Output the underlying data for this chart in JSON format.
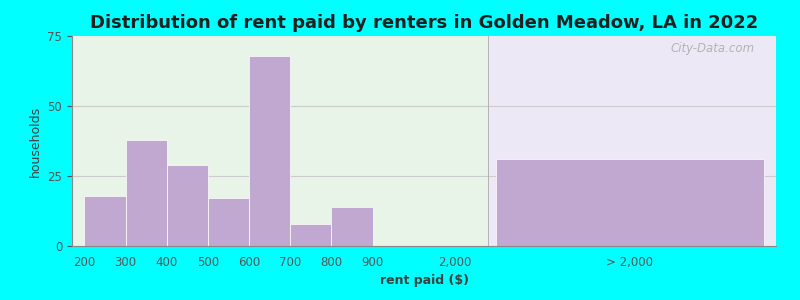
{
  "title": "Distribution of rent paid by renters in Golden Meadow, LA in 2022",
  "xlabel": "rent paid ($)",
  "ylabel": "households",
  "background_outer": "#00FFFF",
  "background_inner_left": "#dff0d8",
  "background_inner_right": "#f0ecf8",
  "bar_color": "#c0a8d0",
  "bar_edge_color": "#ffffff",
  "yticks": [
    0,
    25,
    50,
    75
  ],
  "ylim": [
    0,
    75
  ],
  "bins_left": [
    "200",
    "300",
    "400",
    "500",
    "600",
    "700",
    "800",
    "900"
  ],
  "values_left": [
    18,
    38,
    29,
    17,
    68,
    8,
    14,
    0
  ],
  "label_2000": "2,000",
  "label_gt2000": "> 2,000",
  "value_gt2000": 31,
  "watermark": "City-Data.com",
  "title_fontsize": 13,
  "axis_label_fontsize": 9,
  "tick_fontsize": 8.5
}
